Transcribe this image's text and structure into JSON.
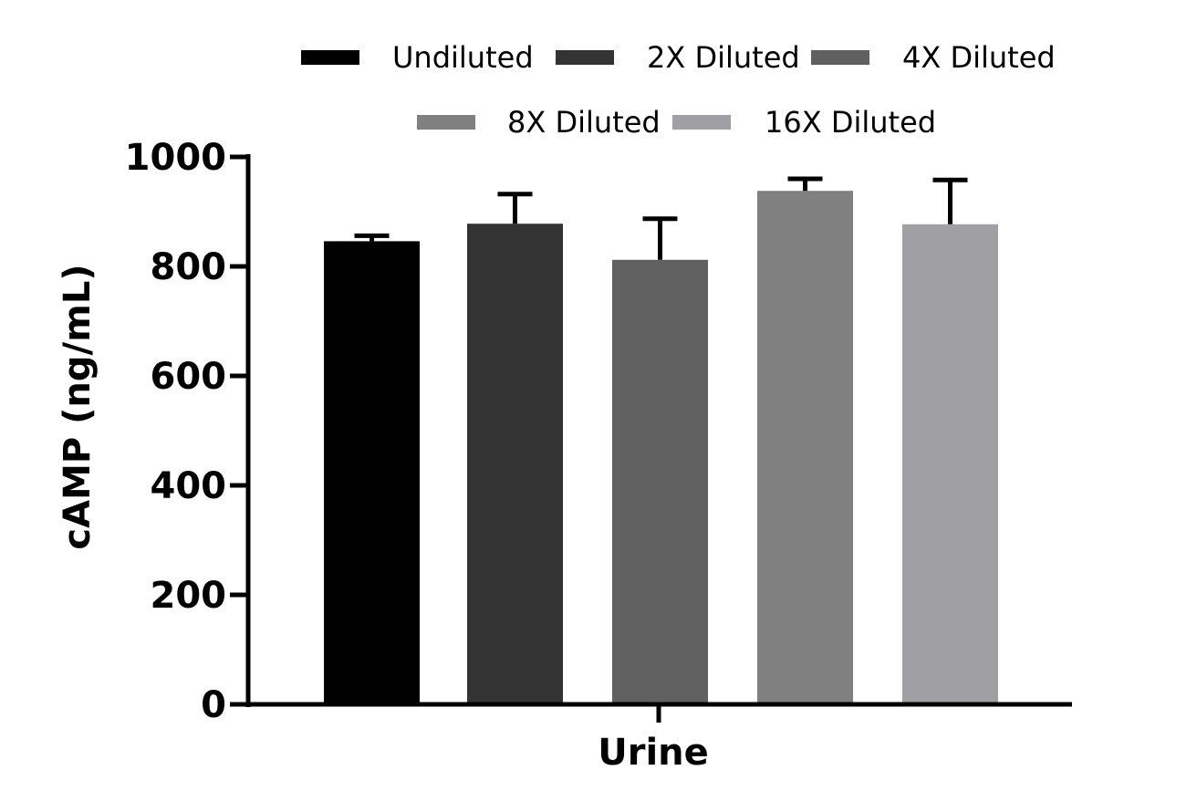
{
  "chart_data": {
    "type": "bar",
    "title": "",
    "xlabel": "Urine",
    "ylabel": "cAMP (ng/mL)",
    "ylim": [
      0,
      1000
    ],
    "yticks": [
      0,
      200,
      400,
      600,
      800,
      1000
    ],
    "categories": [
      "Urine"
    ],
    "legend_position": "top",
    "series": [
      {
        "name": "Undiluted",
        "values": [
          846
        ],
        "error": [
          10
        ],
        "color": "#000000"
      },
      {
        "name": "2X Diluted",
        "values": [
          878
        ],
        "error": [
          54
        ],
        "color": "#333333"
      },
      {
        "name": "4X Diluted",
        "values": [
          812
        ],
        "error": [
          75
        ],
        "color": "#606060"
      },
      {
        "name": "8X Diluted",
        "values": [
          938
        ],
        "error": [
          22
        ],
        "color": "#808080"
      },
      {
        "name": "16X Diluted",
        "values": [
          877
        ],
        "error": [
          81
        ],
        "color": "#a0a0a4"
      }
    ]
  }
}
